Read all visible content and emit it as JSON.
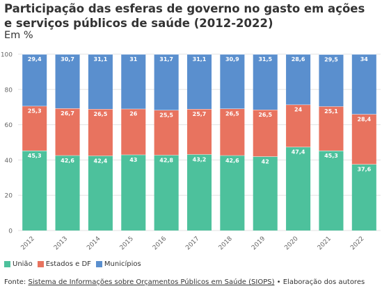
{
  "title": "Participação das esferas de governo no gasto em ações e serviços públicos de saúde (2012-2022)",
  "subtitle": "Em %",
  "source": {
    "prefix": "Fonte: ",
    "link_text": "Sistema de Informações sobre Orçamentos Públicos em Saúde (SIOPS)",
    "suffix": " • Elaboração dos autores"
  },
  "chart_data": {
    "type": "bar",
    "stacked": true,
    "categories": [
      "2012",
      "2013",
      "2014",
      "2015",
      "2016",
      "2017",
      "2018",
      "2019",
      "2020",
      "2021",
      "2022"
    ],
    "series": [
      {
        "name": "União",
        "color": "#4dc19c",
        "values": [
          45.3,
          42.6,
          42.4,
          43,
          42.8,
          43.2,
          42.6,
          42,
          47.4,
          45.3,
          37.6
        ]
      },
      {
        "name": "Estados e DF",
        "color": "#e8735f",
        "values": [
          25.3,
          26.7,
          26.5,
          26,
          25.5,
          25.7,
          26.5,
          26.5,
          24,
          25.1,
          28.4
        ]
      },
      {
        "name": "Municípios",
        "color": "#5a8fce",
        "values": [
          29.4,
          30.7,
          31.1,
          31,
          31.7,
          31.1,
          30.9,
          31.5,
          28.6,
          29.5,
          34
        ]
      }
    ],
    "labels": [
      [
        "45,3",
        "42,6",
        "42,4",
        "43",
        "42,8",
        "43,2",
        "42,6",
        "42",
        "47,4",
        "45,3",
        "37,6"
      ],
      [
        "25,3",
        "26,7",
        "26,5",
        "26",
        "25,5",
        "25,7",
        "26,5",
        "26,5",
        "24",
        "25,1",
        "28,4"
      ],
      [
        "29,4",
        "30,7",
        "31,1",
        "31",
        "31,7",
        "31,1",
        "30,9",
        "31,5",
        "28,6",
        "29,5",
        "34"
      ]
    ],
    "ylim": [
      0,
      100
    ],
    "yticks": [
      "0",
      "20",
      "40",
      "60",
      "80",
      "100"
    ],
    "grid": true,
    "legend_position": "bottom-left"
  }
}
